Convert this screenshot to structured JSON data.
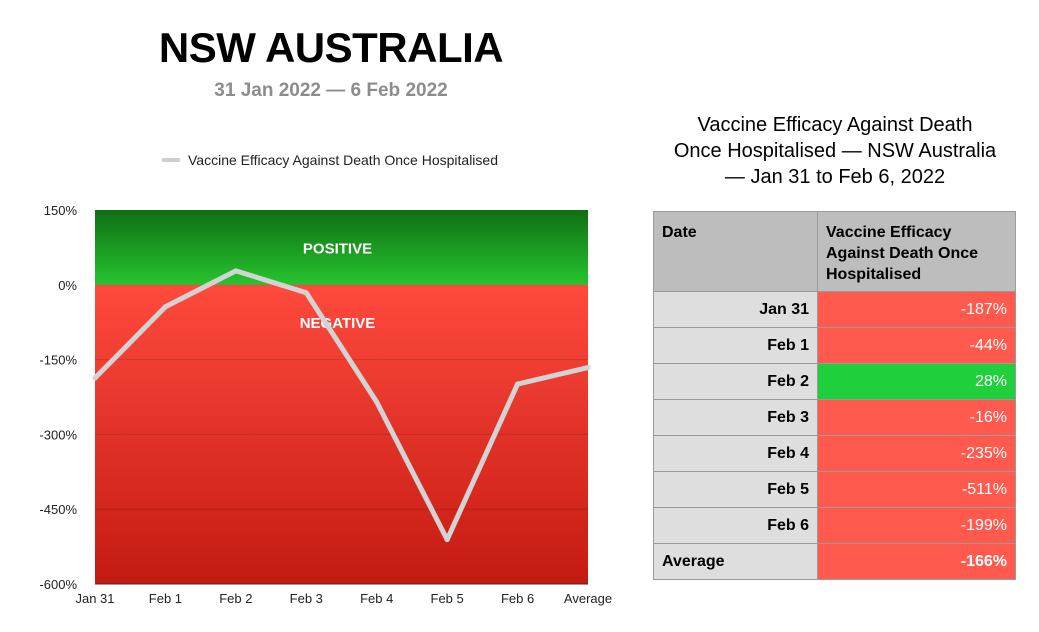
{
  "header": {
    "title": "NSW AUSTRALIA",
    "subtitle": "31 Jan 2022 — 6 Feb 2022"
  },
  "chart_data": {
    "type": "line",
    "categories": [
      "Jan 31",
      "Feb 1",
      "Feb 2",
      "Feb 3",
      "Feb 4",
      "Feb 5",
      "Feb 6",
      "Average"
    ],
    "series": [
      {
        "name": "Vaccine Efficacy Against Death Once Hospitalised",
        "values": [
          -187,
          -44,
          28,
          -16,
          -235,
          -511,
          -199,
          -166
        ],
        "color": "#d3d3d3"
      }
    ],
    "y_ticks": [
      "150%",
      "0%",
      "-150%",
      "-300%",
      "-450%",
      "-600%"
    ],
    "ylim": [
      -600,
      150
    ],
    "bands": [
      {
        "label": "POSITIVE",
        "from": 0,
        "to": 150,
        "color_top": "#0e6f13",
        "color_bottom": "#27c42e"
      },
      {
        "label": "NEGATIVE",
        "from": -600,
        "to": 0,
        "color_top": "#ff4a3d",
        "color_bottom": "#c41a12"
      }
    ],
    "legend": "top"
  },
  "table": {
    "title_lines": [
      "Vaccine Efficacy Against Death",
      "Once Hospitalised — NSW Australia",
      "— Jan 31 to Feb 6, 2022"
    ],
    "headers": [
      "Date",
      "Vaccine Efficacy Against Death Once Hospitalised"
    ],
    "rows": [
      {
        "date": "Jan 31",
        "value": "-187%",
        "color": "#ff5a4d"
      },
      {
        "date": "Feb 1",
        "value": "-44%",
        "color": "#ff5a4d"
      },
      {
        "date": "Feb 2",
        "value": "28%",
        "color": "#1fd03c"
      },
      {
        "date": "Feb 3",
        "value": "-16%",
        "color": "#ff5a4d"
      },
      {
        "date": "Feb 4",
        "value": "-235%",
        "color": "#ff5a4d"
      },
      {
        "date": "Feb 5",
        "value": "-511%",
        "color": "#ff5a4d"
      },
      {
        "date": "Feb 6",
        "value": "-199%",
        "color": "#ff5a4d"
      }
    ],
    "average": {
      "label": "Average",
      "value": "-166%",
      "color": "#ff5a4d"
    }
  }
}
